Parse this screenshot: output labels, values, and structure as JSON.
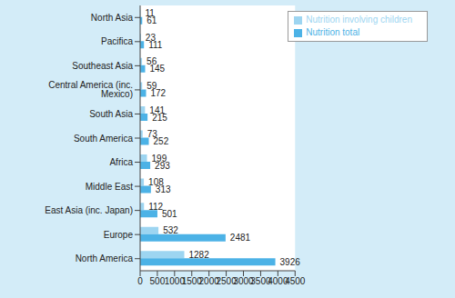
{
  "chart_data": {
    "type": "bar",
    "orientation": "horizontal",
    "categories": [
      "North Asia",
      "Pacifica",
      "Southeast Asia",
      "Central America (inc. Mexico)",
      "South Asia",
      "South America",
      "Africa",
      "Middle East",
      "East Asia (inc. Japan)",
      "Europe",
      "North America"
    ],
    "series": [
      {
        "name": "Nutrition involving children",
        "color": "#9dd5f1",
        "values": [
          11,
          23,
          56,
          59,
          141,
          73,
          199,
          108,
          112,
          532,
          1282
        ]
      },
      {
        "name": "Nutrition total",
        "color": "#4cb2e6",
        "values": [
          61,
          111,
          145,
          172,
          215,
          252,
          293,
          313,
          501,
          2481,
          3926
        ]
      }
    ],
    "xlim": [
      0,
      4500
    ],
    "xticks": [
      0,
      500,
      1000,
      1500,
      2000,
      2500,
      3000,
      3500,
      4000,
      4500
    ],
    "grid": false,
    "legend": "top-right",
    "data_labels": true
  }
}
